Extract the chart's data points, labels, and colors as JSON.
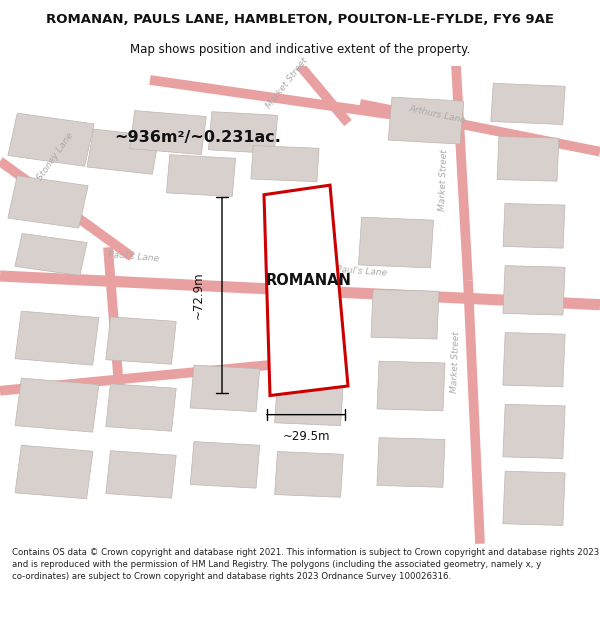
{
  "title_line1": "ROMANAN, PAULS LANE, HAMBLETON, POULTON-LE-FYLDE, FY6 9AE",
  "title_line2": "Map shows position and indicative extent of the property.",
  "area_label": "~936m²/~0.231ac.",
  "property_name": "ROMANAN",
  "dim_vertical": "~72.9m",
  "dim_horizontal": "~29.5m",
  "footer_text": "Contains OS data © Crown copyright and database right 2021. This information is subject to Crown copyright and database rights 2023 and is reproduced with the permission of HM Land Registry. The polygons (including the associated geometry, namely x, y co-ordinates) are subject to Crown copyright and database rights 2023 Ordnance Survey 100026316.",
  "map_bg": "#f8f4f2",
  "road_color": "#e8a0a0",
  "building_color": "#d8d0cc",
  "building_edge": "#bdb5b0",
  "red_outline": "#cc0000",
  "text_color": "#111111",
  "street_color": "#aaaaaa",
  "title_fs": 9.5,
  "subtitle_fs": 8.5,
  "area_fs": 11.5,
  "prop_fs": 10.5,
  "dim_fs": 8.5,
  "footer_fs": 6.2
}
